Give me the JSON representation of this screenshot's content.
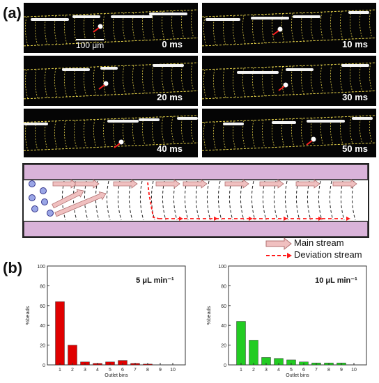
{
  "panel_a": {
    "label": "(a)",
    "scale_bar": "100 μm",
    "frames": [
      {
        "time": "0 ms"
      },
      {
        "time": "10 ms"
      },
      {
        "time": "20 ms"
      },
      {
        "time": "30 ms"
      },
      {
        "time": "40 ms"
      },
      {
        "time": "50 ms"
      }
    ],
    "legend": {
      "main": "Main stream",
      "deviation": "Deviation stream"
    },
    "colors": {
      "channel_wall": "#d9b3d9",
      "main_arrow": "#f0c0c0",
      "deviation": "#ff1a1a",
      "track": "#e6d34a"
    }
  },
  "panel_b": {
    "label": "(b)"
  },
  "chart_data": [
    {
      "type": "bar",
      "annotation": "5 μL min⁻¹",
      "xlabel": "Outlet bins",
      "ylabel": "%beads",
      "categories": [
        "1",
        "2",
        "3",
        "4",
        "5",
        "6",
        "7",
        "8",
        "9",
        "10"
      ],
      "values": [
        64,
        20,
        3,
        1.5,
        3,
        4.5,
        1.5,
        0.8,
        0,
        0
      ],
      "ylim": [
        0,
        100
      ],
      "yticks": [
        "0",
        "20",
        "40",
        "60",
        "80",
        "100"
      ],
      "color": "#e00000"
    },
    {
      "type": "bar",
      "annotation": "10 μL min⁻¹",
      "xlabel": "Outlet bins",
      "ylabel": "%beads",
      "categories": [
        "1",
        "2",
        "3",
        "4",
        "5",
        "6",
        "7",
        "8",
        "9",
        "10"
      ],
      "values": [
        44,
        25,
        7.5,
        6.5,
        5,
        3,
        2,
        2,
        2,
        0
      ],
      "ylim": [
        0,
        100
      ],
      "yticks": [
        "0",
        "20",
        "40",
        "60",
        "80",
        "100"
      ],
      "color": "#22cc22"
    }
  ]
}
